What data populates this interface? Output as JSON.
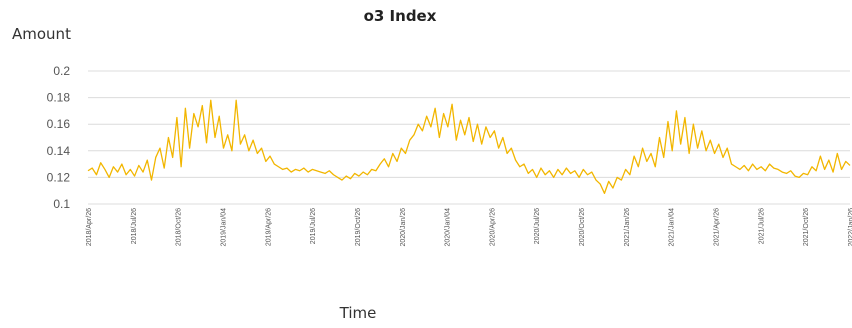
{
  "chart_data": {
    "type": "line",
    "title": "o3 Index",
    "xlabel": "Time",
    "ylabel": "Amount",
    "ylim": [
      0.1,
      0.2
    ],
    "yticks": [
      "0.1",
      "0.12",
      "0.14",
      "0.16",
      "0.18",
      "0.2"
    ],
    "grid": true,
    "legend": "none",
    "line_color": "#f2b600",
    "x_tick_labels": [
      "2018/Apr/26",
      "2018/Jul/26",
      "2018/Oct/26",
      "2019/Jan/04",
      "2019/Apr/26",
      "2019/Jul/26",
      "2019/Oct/26",
      "2020/Jan/26",
      "2020/Jan/04",
      "2020/Apr/26",
      "2020/Jul/26",
      "2020/Oct/26",
      "2021/Jan/26",
      "2021/Jan/04",
      "2021/Apr/26",
      "2021/Jul/26",
      "2021/Oct/26",
      "2022/Jan/26"
    ],
    "series": [
      {
        "values": [
          0.125,
          0.127,
          0.122,
          0.131,
          0.126,
          0.12,
          0.128,
          0.124,
          0.13,
          0.122,
          0.126,
          0.121,
          0.129,
          0.124,
          0.133,
          0.118,
          0.135,
          0.142,
          0.127,
          0.15,
          0.135,
          0.165,
          0.128,
          0.172,
          0.142,
          0.168,
          0.158,
          0.174,
          0.146,
          0.178,
          0.15,
          0.166,
          0.142,
          0.152,
          0.14,
          0.178,
          0.145,
          0.152,
          0.14,
          0.148,
          0.138,
          0.142,
          0.132,
          0.136,
          0.13,
          0.128,
          0.126,
          0.127,
          0.124,
          0.126,
          0.125,
          0.127,
          0.124,
          0.126,
          0.125,
          0.124,
          0.123,
          0.125,
          0.122,
          0.12,
          0.118,
          0.121,
          0.119,
          0.123,
          0.121,
          0.124,
          0.122,
          0.126,
          0.125,
          0.13,
          0.134,
          0.128,
          0.138,
          0.132,
          0.142,
          0.138,
          0.148,
          0.152,
          0.16,
          0.155,
          0.166,
          0.158,
          0.172,
          0.15,
          0.168,
          0.158,
          0.175,
          0.148,
          0.163,
          0.152,
          0.165,
          0.147,
          0.16,
          0.145,
          0.158,
          0.15,
          0.155,
          0.142,
          0.15,
          0.138,
          0.142,
          0.133,
          0.128,
          0.13,
          0.123,
          0.126,
          0.12,
          0.127,
          0.122,
          0.125,
          0.12,
          0.126,
          0.122,
          0.127,
          0.123,
          0.125,
          0.12,
          0.126,
          0.122,
          0.124,
          0.118,
          0.115,
          0.108,
          0.117,
          0.112,
          0.12,
          0.118,
          0.126,
          0.122,
          0.136,
          0.128,
          0.142,
          0.132,
          0.138,
          0.128,
          0.15,
          0.135,
          0.162,
          0.14,
          0.17,
          0.145,
          0.165,
          0.138,
          0.16,
          0.142,
          0.155,
          0.14,
          0.148,
          0.138,
          0.145,
          0.135,
          0.142,
          0.13,
          0.128,
          0.126,
          0.129,
          0.125,
          0.13,
          0.126,
          0.128,
          0.125,
          0.13,
          0.127,
          0.126,
          0.124,
          0.123,
          0.125,
          0.121,
          0.12,
          0.123,
          0.122,
          0.128,
          0.125,
          0.136,
          0.126,
          0.133,
          0.124,
          0.138,
          0.126,
          0.132,
          0.129
        ]
      }
    ]
  }
}
